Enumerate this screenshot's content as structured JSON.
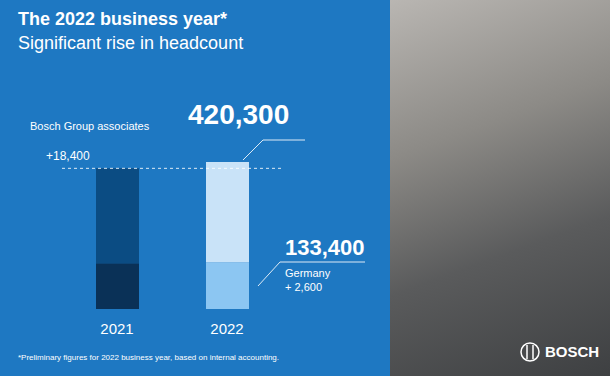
{
  "chart_data": {
    "type": "bar",
    "stacked": true,
    "title": "The 2022 business year*",
    "subtitle": "Significant rise in headcount",
    "categories": [
      "2021",
      "2022"
    ],
    "series": [
      {
        "name": "Germany",
        "values": [
          130800,
          133400
        ],
        "colors": [
          "#0a3157",
          "#8cc6f2"
        ]
      },
      {
        "values": [
          271100,
          286900
        ],
        "colors": [
          "#0b4c83",
          "#c9e3f8"
        ]
      }
    ],
    "ylim": [
      0,
      440000
    ],
    "tick_labels": "x",
    "annotations": [
      {
        "text": "Bosch Group associates"
      },
      {
        "text": "420,300"
      },
      {
        "text": "+18,400"
      },
      {
        "text": "133,400"
      },
      {
        "text": "Germany"
      },
      {
        "text": "+ 2,600"
      }
    ],
    "footnote": "*Preliminary figures for 2022 business year, based on internal accounting.",
    "brand": "BOSCH",
    "color": "#1e78c2"
  }
}
